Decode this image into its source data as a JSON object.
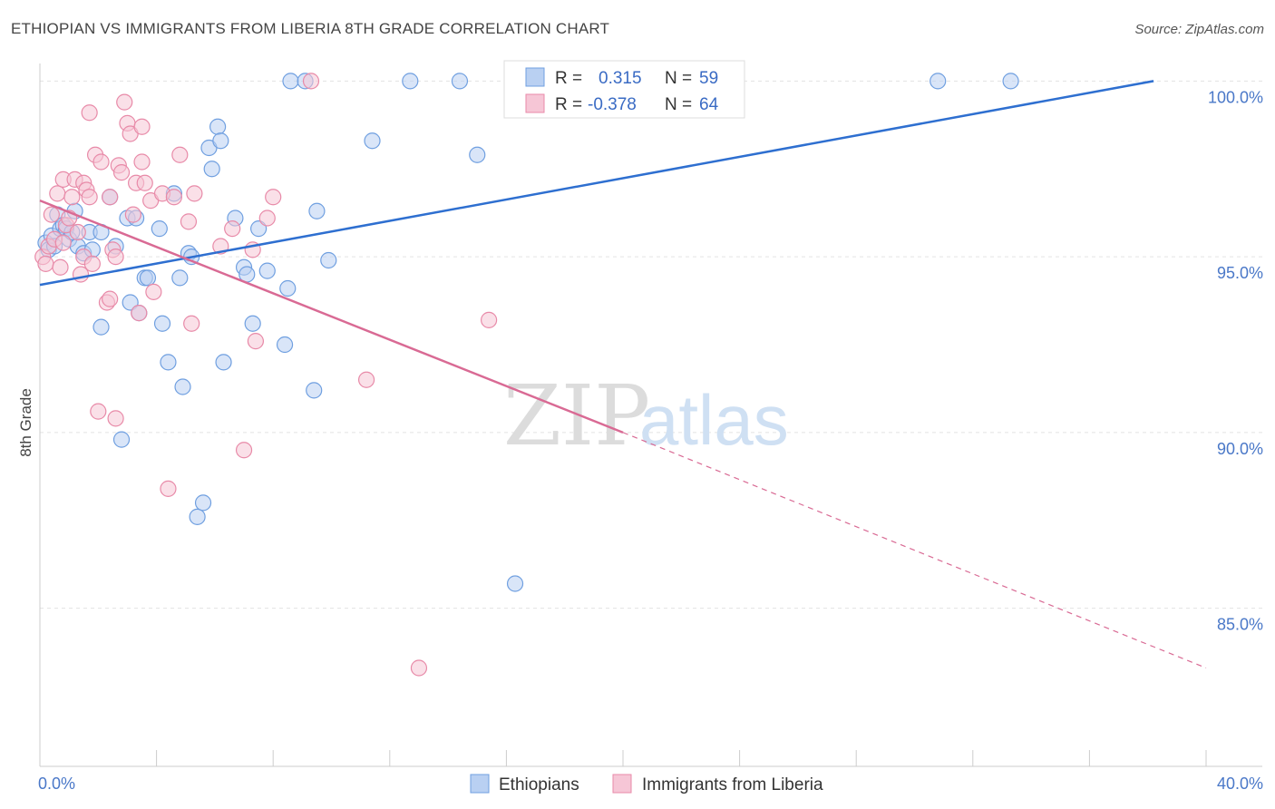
{
  "header": {
    "title": "ETHIOPIAN VS IMMIGRANTS FROM LIBERIA 8TH GRADE CORRELATION CHART",
    "source": "Source: ZipAtlas.com"
  },
  "watermark": {
    "zip": "ZIP",
    "atlas": "atlas"
  },
  "legend": {
    "r_label": "R =",
    "n_label": "N =",
    "rows": [
      {
        "r": "0.315",
        "n": "59"
      },
      {
        "r": "-0.378",
        "n": "64"
      }
    ]
  },
  "chart_data": {
    "type": "scatter",
    "title": "ETHIOPIAN VS IMMIGRANTS FROM LIBERIA 8TH GRADE CORRELATION CHART",
    "xlabel": "",
    "ylabel": "8th Grade",
    "xlim": [
      0,
      40
    ],
    "ylim": [
      80.5,
      100.5
    ],
    "x_tick_labels": [
      "0.0%",
      "40.0%"
    ],
    "y_ticks": [
      85,
      90,
      95,
      100
    ],
    "y_tick_labels": [
      "85.0%",
      "90.0%",
      "95.0%",
      "100.0%"
    ],
    "grid": true,
    "legend_position": "top-center",
    "series": [
      {
        "name": "Ethiopians",
        "color": "#6f9fe0",
        "fill": "#b9d0f2",
        "line_color": "#2e6fd0",
        "R": 0.315,
        "N": 59,
        "trend": {
          "x": [
            0,
            38.2
          ],
          "y": [
            94.2,
            100.0
          ]
        },
        "points": [
          [
            0.2,
            95.4
          ],
          [
            0.3,
            95.2
          ],
          [
            0.4,
            95.6
          ],
          [
            0.5,
            95.3
          ],
          [
            0.6,
            96.2
          ],
          [
            0.7,
            95.8
          ],
          [
            0.8,
            95.9
          ],
          [
            0.9,
            95.8
          ],
          [
            1.0,
            95.5
          ],
          [
            1.1,
            95.7
          ],
          [
            1.2,
            96.3
          ],
          [
            1.3,
            95.3
          ],
          [
            1.5,
            95.1
          ],
          [
            1.7,
            95.7
          ],
          [
            1.8,
            95.2
          ],
          [
            2.1,
            95.7
          ],
          [
            2.4,
            96.7
          ],
          [
            2.6,
            95.3
          ],
          [
            2.1,
            93.0
          ],
          [
            2.8,
            89.8
          ],
          [
            3.0,
            96.1
          ],
          [
            3.1,
            93.7
          ],
          [
            3.3,
            96.1
          ],
          [
            3.4,
            93.4
          ],
          [
            3.6,
            94.4
          ],
          [
            3.7,
            94.4
          ],
          [
            4.1,
            95.8
          ],
          [
            4.2,
            93.1
          ],
          [
            4.4,
            92.0
          ],
          [
            4.6,
            96.8
          ],
          [
            4.8,
            94.4
          ],
          [
            4.9,
            91.3
          ],
          [
            5.1,
            95.1
          ],
          [
            5.2,
            95.0
          ],
          [
            5.4,
            87.6
          ],
          [
            5.6,
            88.0
          ],
          [
            5.8,
            98.1
          ],
          [
            5.9,
            97.5
          ],
          [
            6.1,
            98.7
          ],
          [
            6.2,
            98.3
          ],
          [
            6.3,
            92.0
          ],
          [
            6.7,
            96.1
          ],
          [
            7.0,
            94.7
          ],
          [
            7.1,
            94.5
          ],
          [
            7.3,
            93.1
          ],
          [
            7.5,
            95.8
          ],
          [
            7.8,
            94.6
          ],
          [
            8.4,
            92.5
          ],
          [
            8.5,
            94.1
          ],
          [
            8.6,
            100.0
          ],
          [
            9.1,
            100.0
          ],
          [
            9.4,
            91.2
          ],
          [
            9.5,
            96.3
          ],
          [
            9.9,
            94.9
          ],
          [
            11.4,
            98.3
          ],
          [
            12.7,
            100.0
          ],
          [
            14.4,
            100.0
          ],
          [
            15.0,
            97.9
          ],
          [
            16.3,
            85.7
          ],
          [
            30.8,
            100.0
          ],
          [
            33.3,
            100.0
          ]
        ]
      },
      {
        "name": "Immigrants from Liberia",
        "color": "#e88aa8",
        "fill": "#f6c6d6",
        "line_color": "#d96a94",
        "R": -0.378,
        "N": 64,
        "trend": {
          "x": [
            0,
            20.0
          ],
          "y": [
            96.6,
            90.0
          ]
        },
        "trend_dashed": {
          "x": [
            20.0,
            40.0
          ],
          "y": [
            90.0,
            83.3
          ]
        },
        "points": [
          [
            0.1,
            95.0
          ],
          [
            0.2,
            94.8
          ],
          [
            0.3,
            95.3
          ],
          [
            0.4,
            96.2
          ],
          [
            0.5,
            95.5
          ],
          [
            0.6,
            96.8
          ],
          [
            0.7,
            94.7
          ],
          [
            0.8,
            95.4
          ],
          [
            0.8,
            97.2
          ],
          [
            0.9,
            95.9
          ],
          [
            1.0,
            96.1
          ],
          [
            1.1,
            96.7
          ],
          [
            1.2,
            97.2
          ],
          [
            1.3,
            95.7
          ],
          [
            1.4,
            94.5
          ],
          [
            1.5,
            97.1
          ],
          [
            1.5,
            95.0
          ],
          [
            1.6,
            96.9
          ],
          [
            1.7,
            96.7
          ],
          [
            1.7,
            99.1
          ],
          [
            1.8,
            94.8
          ],
          [
            1.9,
            97.9
          ],
          [
            2.0,
            90.6
          ],
          [
            2.1,
            97.7
          ],
          [
            2.3,
            93.7
          ],
          [
            2.4,
            93.8
          ],
          [
            2.4,
            96.7
          ],
          [
            2.5,
            95.2
          ],
          [
            2.6,
            95.0
          ],
          [
            2.6,
            90.4
          ],
          [
            2.7,
            97.6
          ],
          [
            2.8,
            97.4
          ],
          [
            2.9,
            99.4
          ],
          [
            3.0,
            98.8
          ],
          [
            3.1,
            98.5
          ],
          [
            3.2,
            96.2
          ],
          [
            3.3,
            97.1
          ],
          [
            3.4,
            93.4
          ],
          [
            3.5,
            97.7
          ],
          [
            3.5,
            98.7
          ],
          [
            3.6,
            97.1
          ],
          [
            3.8,
            96.6
          ],
          [
            3.9,
            94.0
          ],
          [
            4.2,
            96.8
          ],
          [
            4.4,
            88.4
          ],
          [
            4.6,
            96.7
          ],
          [
            4.8,
            97.9
          ],
          [
            5.1,
            96.0
          ],
          [
            5.2,
            93.1
          ],
          [
            5.3,
            96.8
          ],
          [
            6.2,
            95.3
          ],
          [
            6.6,
            95.8
          ],
          [
            7.0,
            89.5
          ],
          [
            7.3,
            95.2
          ],
          [
            7.4,
            92.6
          ],
          [
            7.8,
            96.1
          ],
          [
            8.0,
            96.7
          ],
          [
            9.3,
            100.0
          ],
          [
            11.2,
            91.5
          ],
          [
            13.0,
            83.3
          ],
          [
            15.4,
            93.2
          ]
        ]
      }
    ]
  }
}
